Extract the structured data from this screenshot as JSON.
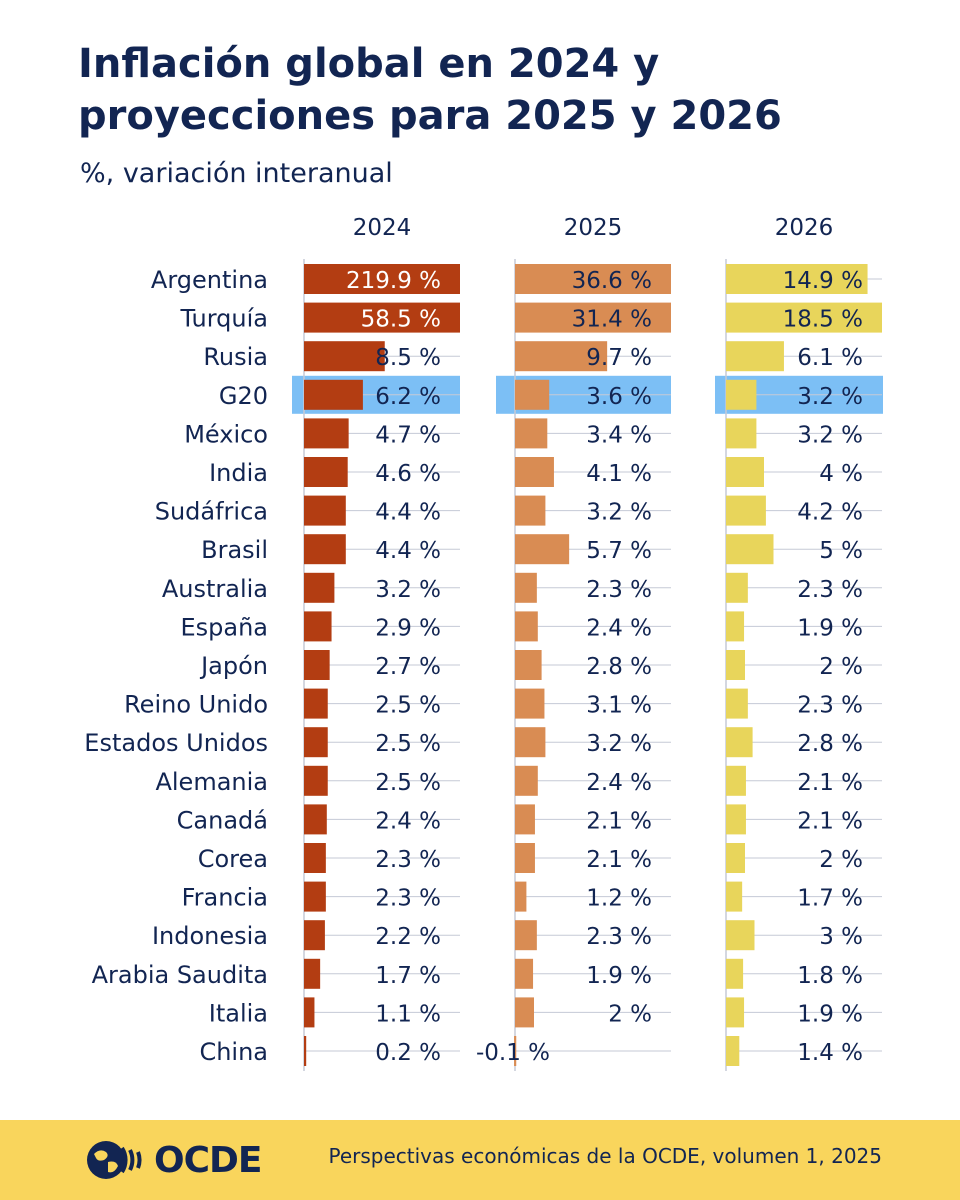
{
  "header": {
    "title": "Inflación global en 2024 y proyecciones para 2025 y 2026",
    "subtitle": "%, variación interanual"
  },
  "chart_data": {
    "type": "bar",
    "orientation": "horizontal",
    "title": "Inflación global en 2024 y proyecciones para 2025 y 2026",
    "subtitle": "%, variación interanual",
    "unit": " %",
    "categories": [
      "Argentina",
      "Turquía",
      "Rusia",
      "G20",
      "México",
      "India",
      "Sudáfrica",
      "Brasil",
      "Australia",
      "España",
      "Japón",
      "Reino Unido",
      "Estados Unidos",
      "Alemania",
      "Canadá",
      "Corea",
      "Francia",
      "Indonesia",
      "Arabia Saudita",
      "Italia",
      "China"
    ],
    "highlight": "G20",
    "series": [
      {
        "name": "2024",
        "color": "#b33d12",
        "values": [
          219.9,
          58.5,
          8.5,
          6.2,
          4.7,
          4.6,
          4.4,
          4.4,
          3.2,
          2.9,
          2.7,
          2.5,
          2.5,
          2.5,
          2.4,
          2.3,
          2.3,
          2.2,
          1.7,
          1.1,
          0.2
        ],
        "labels": [
          "219.9 %",
          "58.5 %",
          "8.5 %",
          "6.2 %",
          "4.7 %",
          "4.6 %",
          "4.4 %",
          "4.4 %",
          "3.2 %",
          "2.9 %",
          "2.7 %",
          "2.5 %",
          "2.5 %",
          "2.5 %",
          "2.4 %",
          "2.3 %",
          "2.3 %",
          "2.2 %",
          "1.7 %",
          "1.1 %",
          "0.2 %"
        ]
      },
      {
        "name": "2025",
        "color": "#d98c53",
        "values": [
          36.6,
          31.4,
          9.7,
          3.6,
          3.4,
          4.1,
          3.2,
          5.7,
          2.3,
          2.4,
          2.8,
          3.1,
          3.2,
          2.4,
          2.1,
          2.1,
          1.2,
          2.3,
          1.9,
          2.0,
          -0.1
        ],
        "labels": [
          "36.6 %",
          "31.4 %",
          "9.7 %",
          "3.6 %",
          "3.4 %",
          "4.1 %",
          "3.2 %",
          "5.7 %",
          "2.3 %",
          "2.4 %",
          "2.8 %",
          "3.1 %",
          "3.2 %",
          "2.4 %",
          "2.1 %",
          "2.1 %",
          "1.2 %",
          "2.3 %",
          "1.9 %",
          "2 %",
          "-0.1 %"
        ]
      },
      {
        "name": "2026",
        "color": "#e8d55b",
        "values": [
          14.9,
          18.5,
          6.1,
          3.2,
          3.2,
          4.0,
          4.2,
          5.0,
          2.3,
          1.9,
          2.0,
          2.3,
          2.8,
          2.1,
          2.1,
          2.0,
          1.7,
          3.0,
          1.8,
          1.9,
          1.4
        ],
        "labels": [
          "14.9 %",
          "18.5 %",
          "6.1 %",
          "3.2 %",
          "3.2 %",
          "4 %",
          "4.2 %",
          "5 %",
          "2.3 %",
          "1.9 %",
          "2 %",
          "2.3 %",
          "2.8 %",
          "2.1 %",
          "2.1 %",
          "2 %",
          "1.7 %",
          "3 %",
          "1.8 %",
          "1.9 %",
          "1.4 %"
        ]
      }
    ],
    "axis_note": "Bars truncated at panel width for large values"
  },
  "footer": {
    "logo_text": "OCDE",
    "source": "Perspectivas económicas de la OCDE, volumen 1, 2025",
    "background": "#f9d55c"
  },
  "colors": {
    "text": "#122552",
    "highlight_band": "#7cbff5",
    "grid": "#c5cad6"
  }
}
